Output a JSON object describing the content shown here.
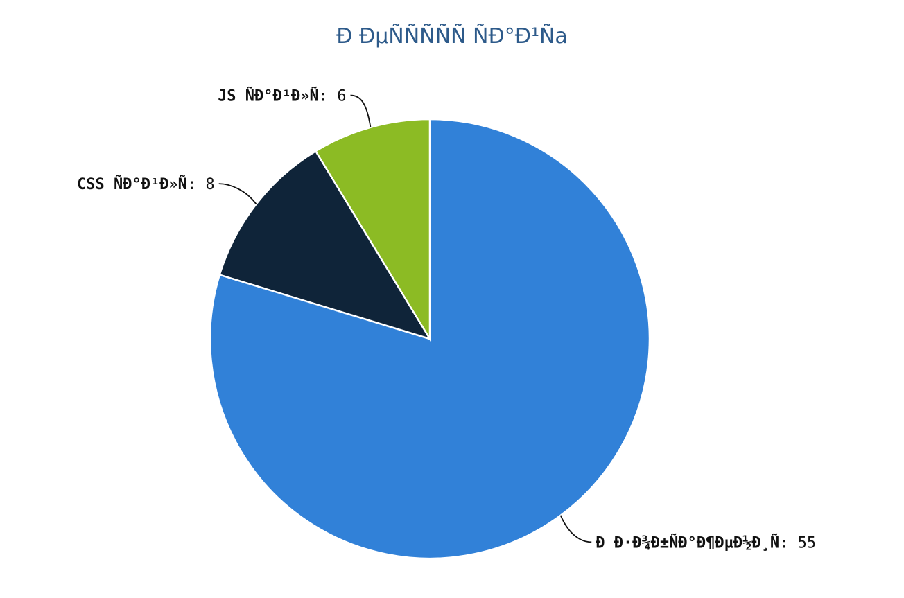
{
  "chart_data": {
    "type": "pie",
    "title": "Ð ÐµÑÑÑÑÑ ÑÐ°Ð¹Ñа",
    "separator": ": ",
    "categories": [
      "Ð Ð·Ð¾Ð±ÑÐ°Ð¶ÐµÐ½Ð¸Ñ",
      "JS ÑÐ°Ð¹Ð»Ñ",
      "CSS ÑÐ°Ð¹Ð»Ñ"
    ],
    "values": [
      55,
      6,
      8
    ],
    "colors": [
      "#3181d8",
      "#8cbb24",
      "#0f2439"
    ],
    "legend": "none"
  }
}
